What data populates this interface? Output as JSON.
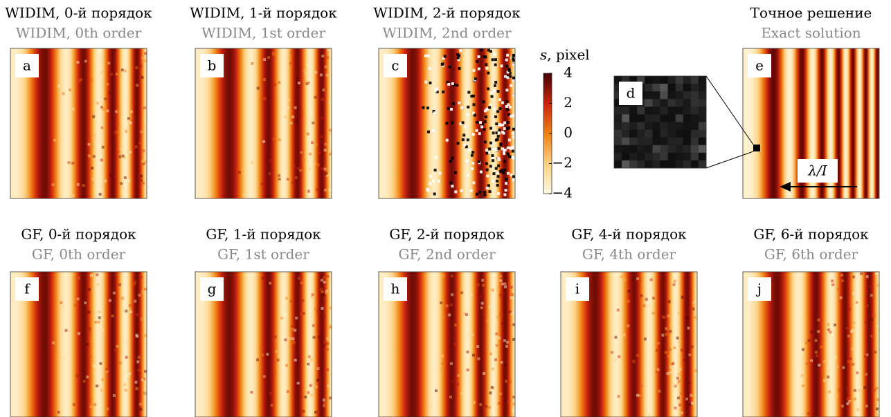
{
  "panels": [
    {
      "letter": "a",
      "title_ru": "WIDIM, 0-й порядок",
      "title_en": "WIDIM, 0th order"
    },
    {
      "letter": "b",
      "title_ru": "WIDIM, 1-й порядок",
      "title_en": "WIDIM, 1st order"
    },
    {
      "letter": "c",
      "title_ru": "WIDIM, 2-й порядок",
      "title_en": "WIDIM, 2nd order"
    },
    {
      "letter": "e",
      "title_ru": "Точное решение",
      "title_en": "Exact solution"
    },
    {
      "letter": "f",
      "title_ru": "GF, 0-й порядок",
      "title_en": "GF, 0th order"
    },
    {
      "letter": "g",
      "title_ru": "GF, 1-й порядок",
      "title_en": "GF, 1st order"
    },
    {
      "letter": "h",
      "title_ru": "GF, 2-й порядок",
      "title_en": "GF, 2nd order"
    },
    {
      "letter": "i",
      "title_ru": "GF, 4-й порядок",
      "title_en": "GF, 4th order"
    },
    {
      "letter": "j",
      "title_ru": "GF, 6-й порядок",
      "title_en": "GF, 6th order"
    }
  ],
  "inset": {
    "letter": "d"
  },
  "arrow_label": "λ/I",
  "colorbar": {
    "label_var": "s",
    "label_unit": ", pixel",
    "lim": [
      -4,
      4
    ],
    "ticks": [
      4,
      2,
      0,
      {
        "value": -2,
        "label": "−2"
      },
      {
        "value": -4,
        "label": "−4"
      }
    ]
  }
}
